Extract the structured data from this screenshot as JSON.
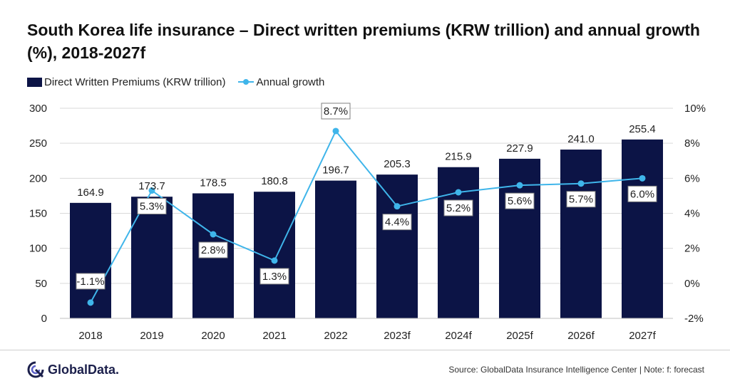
{
  "title": "South Korea life insurance – Direct written premiums (KRW trillion) and annual growth (%), 2018-2027f",
  "legend": {
    "bars_label": "Direct Written Premiums (KRW trillion)",
    "line_label": "Annual growth"
  },
  "colors": {
    "bar": "#0c1446",
    "line": "#3fb5ea",
    "grid": "#d9d9d9",
    "label_border": "#7f7f7f"
  },
  "chart_data": {
    "type": "bar",
    "categories": [
      "2018",
      "2019",
      "2020",
      "2021",
      "2022",
      "2023f",
      "2024f",
      "2025f",
      "2026f",
      "2027f"
    ],
    "series": [
      {
        "name": "Direct Written Premiums (KRW trillion)",
        "type": "bar",
        "axis": "left",
        "values": [
          164.9,
          173.7,
          178.5,
          180.8,
          196.7,
          205.3,
          215.9,
          227.9,
          241.0,
          255.4
        ],
        "labels": [
          "164.9",
          "173.7",
          "178.5",
          "180.8",
          "196.7",
          "205.3",
          "215.9",
          "227.9",
          "241.0",
          "255.4"
        ]
      },
      {
        "name": "Annual growth",
        "type": "line",
        "axis": "right",
        "values": [
          -1.1,
          5.3,
          2.8,
          1.3,
          8.7,
          4.4,
          5.2,
          5.6,
          5.7,
          6.0
        ],
        "labels": [
          "-1.1%",
          "5.3%",
          "2.8%",
          "1.3%",
          "8.7%",
          "4.4%",
          "5.2%",
          "5.6%",
          "5.7%",
          "6.0%"
        ]
      }
    ],
    "y_left": {
      "min": 0,
      "max": 300,
      "ticks": [
        "0",
        "50",
        "100",
        "150",
        "200",
        "250",
        "300"
      ]
    },
    "y_right": {
      "min": -2,
      "max": 10,
      "ticks": [
        "-2%",
        "0%",
        "2%",
        "4%",
        "6%",
        "8%",
        "10%"
      ]
    },
    "grid": true,
    "legend_position": "top-left"
  },
  "footer": {
    "logo_text": "GlobalData.",
    "source": "Source: GlobalData Insurance Intelligence Center | Note: f: forecast"
  }
}
